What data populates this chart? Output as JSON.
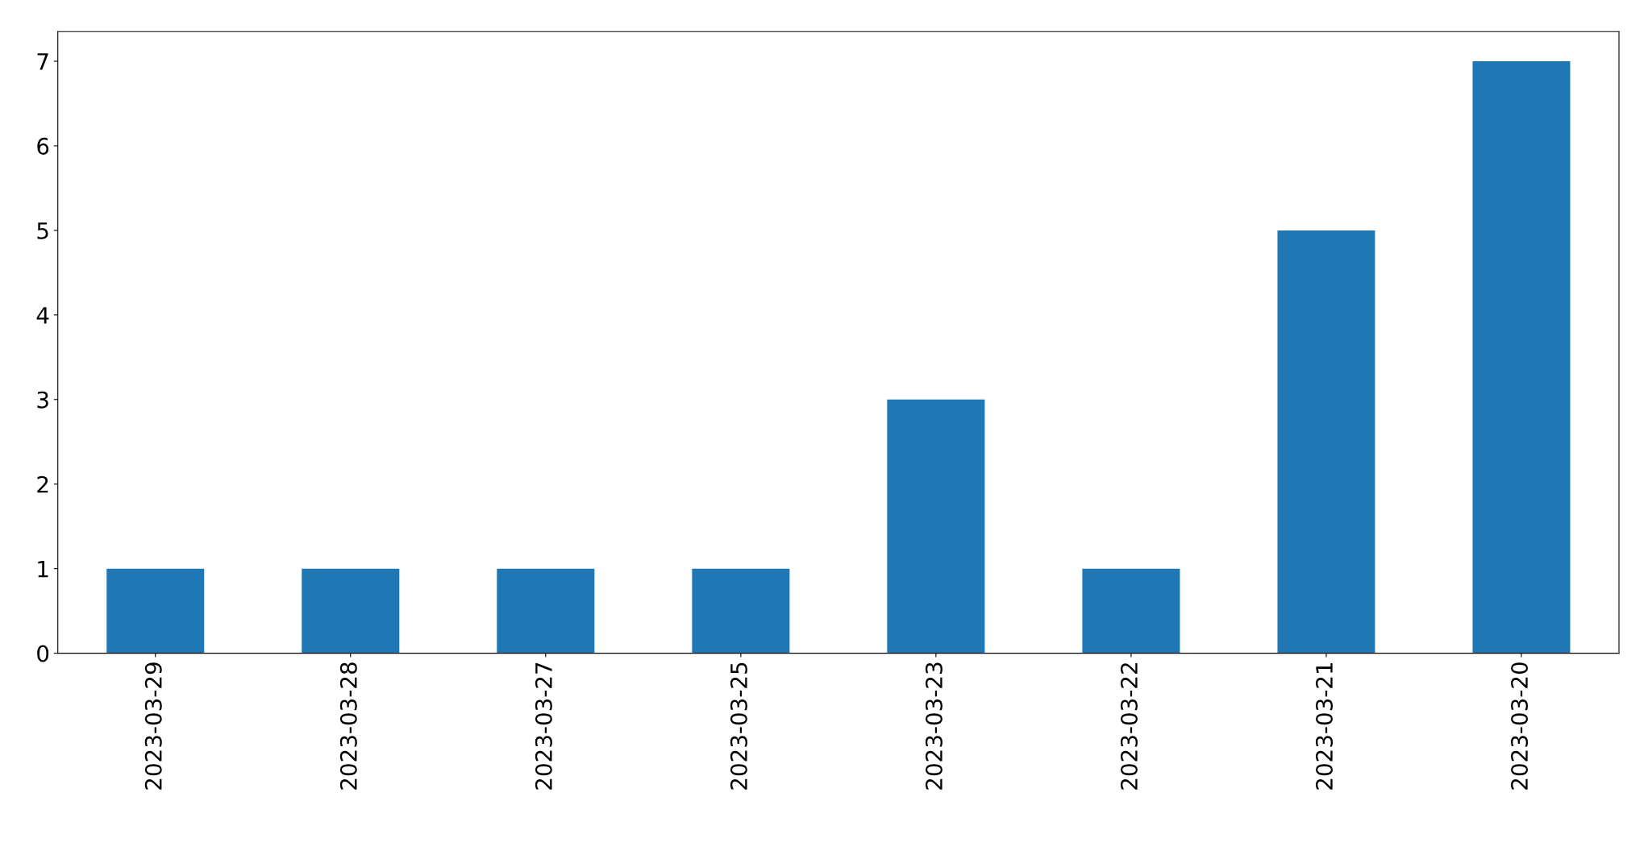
{
  "chart_data": {
    "type": "bar",
    "categories": [
      "2023-03-29",
      "2023-03-28",
      "2023-03-27",
      "2023-03-25",
      "2023-03-23",
      "2023-03-22",
      "2023-03-21",
      "2023-03-20"
    ],
    "values": [
      1,
      1,
      1,
      1,
      3,
      1,
      5,
      7
    ],
    "color": "#1f77b4",
    "ylim": [
      0,
      7.35
    ],
    "yticks": [
      0,
      1,
      2,
      3,
      4,
      5,
      6,
      7
    ],
    "grid": false,
    "legend": false
  }
}
